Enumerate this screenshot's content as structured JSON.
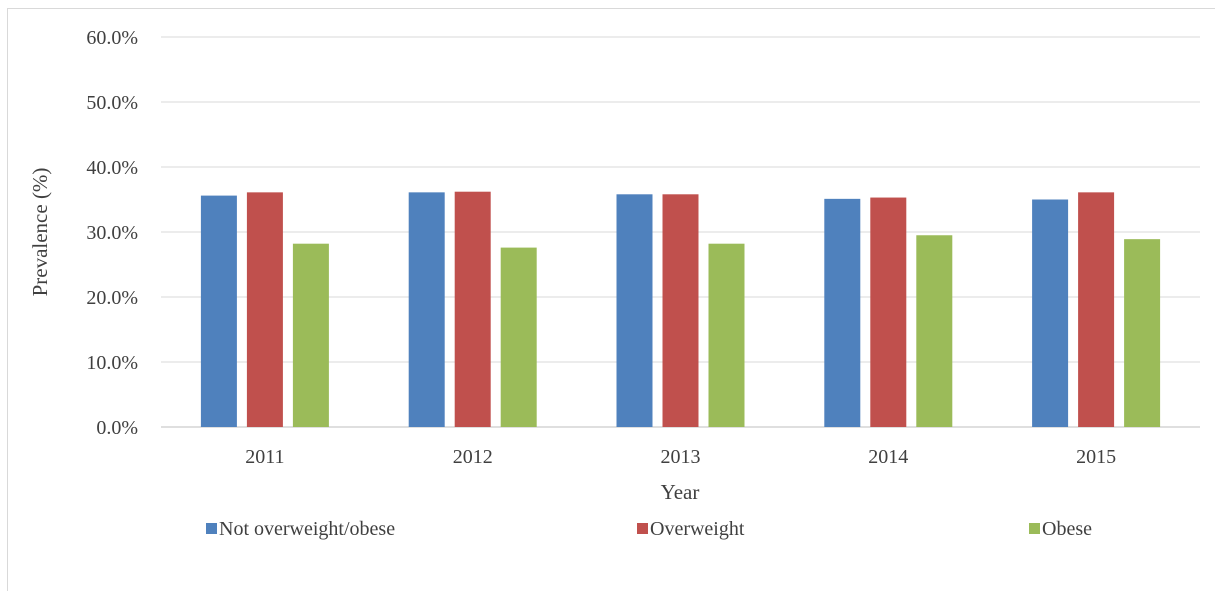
{
  "chart_data": {
    "type": "bar",
    "title": "",
    "xlabel": "Year",
    "ylabel": "Prevalence (%)",
    "categories": [
      "2011",
      "2012",
      "2013",
      "2014",
      "2015"
    ],
    "series": [
      {
        "name": "Not overweight/obese",
        "color": "#4f81bd",
        "values": [
          35.6,
          36.1,
          35.8,
          35.1,
          35.0
        ]
      },
      {
        "name": "Overweight",
        "color": "#c0504d",
        "values": [
          36.1,
          36.2,
          35.8,
          35.3,
          36.1
        ]
      },
      {
        "name": "Obese",
        "color": "#9bbb59",
        "values": [
          28.2,
          27.6,
          28.2,
          29.5,
          28.9
        ]
      }
    ],
    "ylim": [
      0,
      60
    ],
    "yticks": [
      "0.0%",
      "10.0%",
      "20.0%",
      "30.0%",
      "40.0%",
      "50.0%",
      "60.0%"
    ],
    "grid": true,
    "legend": "bottom"
  }
}
